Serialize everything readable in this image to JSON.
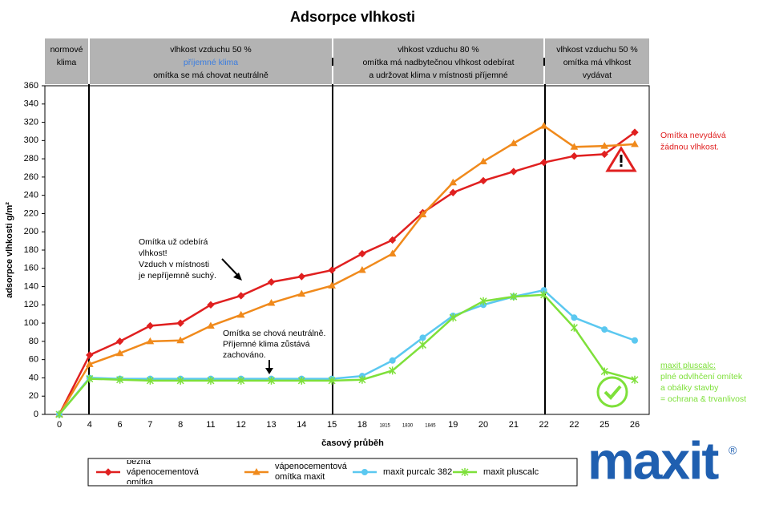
{
  "chart_data": {
    "type": "line",
    "title": "Adsorpce vlhkosti",
    "x_label": "časový průběh",
    "y_label": "adsorpce vlhkosti g/m²",
    "categories": [
      "0",
      "4",
      "6",
      "7",
      "8",
      "11",
      "12",
      "13",
      "14",
      "15",
      "18",
      null,
      null,
      "19",
      "20",
      "21",
      "22",
      "22",
      "25",
      "26"
    ],
    "minor_x_labels": [
      "1815",
      "1830",
      "1845"
    ],
    "ylim": [
      0,
      360
    ],
    "yticks": [
      0,
      20,
      40,
      60,
      80,
      100,
      120,
      140,
      160,
      180,
      200,
      220,
      240,
      260,
      280,
      300,
      320,
      340,
      360
    ],
    "series": [
      {
        "name": "běžná vápenocementová omítka",
        "color": "#e02020",
        "marker": "diamond",
        "values": [
          0,
          65,
          80,
          97,
          100,
          120,
          130,
          145,
          151,
          158,
          176,
          191,
          221,
          243,
          256,
          266,
          276,
          283,
          285,
          309
        ]
      },
      {
        "name": "vápenocementová omítka maxit",
        "color": "#f08a1c",
        "marker": "triangle",
        "values": [
          0,
          55,
          67,
          80,
          81,
          97,
          109,
          122,
          132,
          141,
          158,
          176,
          219,
          254,
          277,
          297,
          316,
          293,
          294,
          296
        ]
      },
      {
        "name": "maxit purcalc 382",
        "color": "#5bc8f0",
        "marker": "circle",
        "values": [
          0,
          40,
          39,
          39,
          39,
          39,
          39,
          39,
          39,
          39,
          42,
          59,
          84,
          108,
          120,
          129,
          136,
          106,
          93,
          81
        ]
      },
      {
        "name": "maxit pluscalc",
        "color": "#7ee03a",
        "marker": "star",
        "values": [
          0,
          39,
          38,
          37,
          37,
          37,
          37,
          37,
          37,
          37,
          38,
          48,
          76,
          106,
          124,
          129,
          131,
          95,
          47,
          38
        ]
      }
    ],
    "headers": [
      {
        "lines": [
          {
            "text": "normové"
          },
          {
            "text": "klima"
          }
        ]
      },
      {
        "lines": [
          {
            "text": "vlhkost vzduchu 50 %"
          },
          {
            "text": "příjemné klima",
            "color": "#3a7de0"
          },
          {
            "text": "omítka se má chovat neutrálně"
          }
        ]
      },
      {
        "lines": [
          {
            "text": "vlhkost vzduchu 80 %"
          },
          {
            "text": "omítka má nadbytečnou vlhkost odebírat"
          },
          {
            "text": "a udržovat klima v místnosti příjemné"
          }
        ]
      },
      {
        "lines": [
          {
            "text": "vlhkost vzduchu 50 %"
          },
          {
            "text": "omítka má vlhkost"
          },
          {
            "text": "vydávat"
          }
        ]
      }
    ],
    "annotations": [
      {
        "lines": [
          "Omítka už odebírá",
          "vlhkost!",
          "Vzduch v místnosti",
          "je nepříjemně suchý."
        ],
        "color": "#000000"
      },
      {
        "lines": [
          "Omítka se chová neutrálně.",
          "Příjemné klima zůstává",
          "zachováno."
        ],
        "color": "#000000"
      },
      {
        "lines": [
          "Omítka nevydává",
          "žádnou vlhkost."
        ],
        "color": "#e02020"
      },
      {
        "lines": [
          "maxit pluscalc:",
          "plné odvlhčení omítek",
          "a obálky stavby",
          "= ochrana & trvanlivost"
        ],
        "color": "#7ee03a"
      }
    ]
  },
  "logo": {
    "text": "maxit",
    "mark": "®"
  }
}
